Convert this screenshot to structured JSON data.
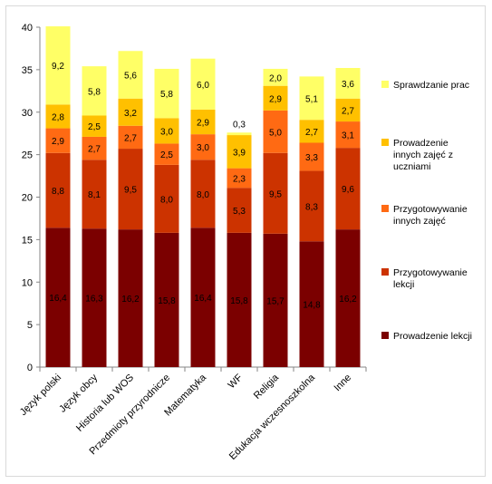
{
  "chart_data": {
    "type": "bar",
    "stacked": true,
    "categories": [
      "Język polski",
      "Język obcy",
      "Historia lub WOS",
      "Przedmioty przyrodnicze",
      "Matematyka",
      "WF",
      "Religia",
      "Edukacja wczesnoszkolna",
      "Inne"
    ],
    "series": [
      {
        "name": "Prowadzenie lekcji",
        "color": "#7b0000",
        "values": [
          16.4,
          16.3,
          16.2,
          15.8,
          16.4,
          15.8,
          15.7,
          14.8,
          16.2
        ],
        "labels": [
          "16,4",
          "16,3",
          "16,2",
          "15,8",
          "16,4",
          "15,8",
          "15,7",
          "14,8",
          "16,2"
        ]
      },
      {
        "name": "Przygotowywanie lekcji",
        "color": "#cc3300",
        "values": [
          8.8,
          8.1,
          9.5,
          8.0,
          8.0,
          5.3,
          9.5,
          8.3,
          9.6
        ],
        "labels": [
          "8,8",
          "8,1",
          "9,5",
          "8,0",
          "8,0",
          "5,3",
          "9,5",
          "8,3",
          "9,6"
        ]
      },
      {
        "name": "Przygotowywanie innych zajęć",
        "color": "#ff6a13",
        "values": [
          2.9,
          2.7,
          2.7,
          2.5,
          3.0,
          2.3,
          5.0,
          3.3,
          3.1
        ],
        "labels": [
          "2,9",
          "2,7",
          "2,7",
          "2,5",
          "3,0",
          "2,3",
          "5,0",
          "3,3",
          "3,1"
        ]
      },
      {
        "name": "Prowadzenie innych zajęć z uczniami",
        "color": "#ffc000",
        "values": [
          2.8,
          2.5,
          3.2,
          3.0,
          2.9,
          3.9,
          2.9,
          2.7,
          2.7
        ],
        "labels": [
          "2,8",
          "2,5",
          "3,2",
          "3,0",
          "2,9",
          "3,9",
          "2,9",
          "2,7",
          "2,7"
        ]
      },
      {
        "name": "Sprawdzanie prac",
        "color": "#ffff66",
        "values": [
          9.2,
          5.8,
          5.6,
          5.8,
          6.0,
          0.3,
          2.0,
          5.1,
          3.6
        ],
        "labels": [
          "9,2",
          "5,8",
          "5,6",
          "5,8",
          "6,0",
          "0,3",
          "2,0",
          "5,1",
          "3,6"
        ]
      }
    ],
    "legend_lines": [
      [
        "Sprawdzanie prac"
      ],
      [
        "Prowadzenie",
        "innych zajęć z",
        "uczniami"
      ],
      [
        "Przygotowywanie",
        "innych zajęć"
      ],
      [
        "Przygotowywanie",
        "lekcji"
      ],
      [
        "Prowadzenie lekcji"
      ]
    ],
    "ylim": [
      0,
      40
    ],
    "yticks": [
      0,
      5,
      10,
      15,
      20,
      25,
      30,
      35,
      40
    ],
    "title": "",
    "xlabel": "",
    "ylabel": "",
    "grid": false,
    "legend_position": "right"
  }
}
